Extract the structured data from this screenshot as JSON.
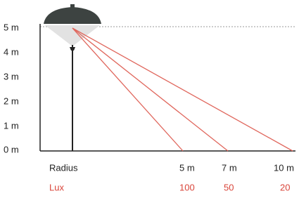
{
  "y_axis": {
    "labels": [
      "5 m",
      "4 m",
      "3 m",
      "2 m",
      "1 m",
      "0 m"
    ]
  },
  "radius_row": {
    "label": "Radius",
    "values": [
      "5 m",
      "7 m",
      "10 m"
    ]
  },
  "lux_row": {
    "label": "Lux",
    "values": [
      "100",
      "50",
      "20"
    ]
  }
}
